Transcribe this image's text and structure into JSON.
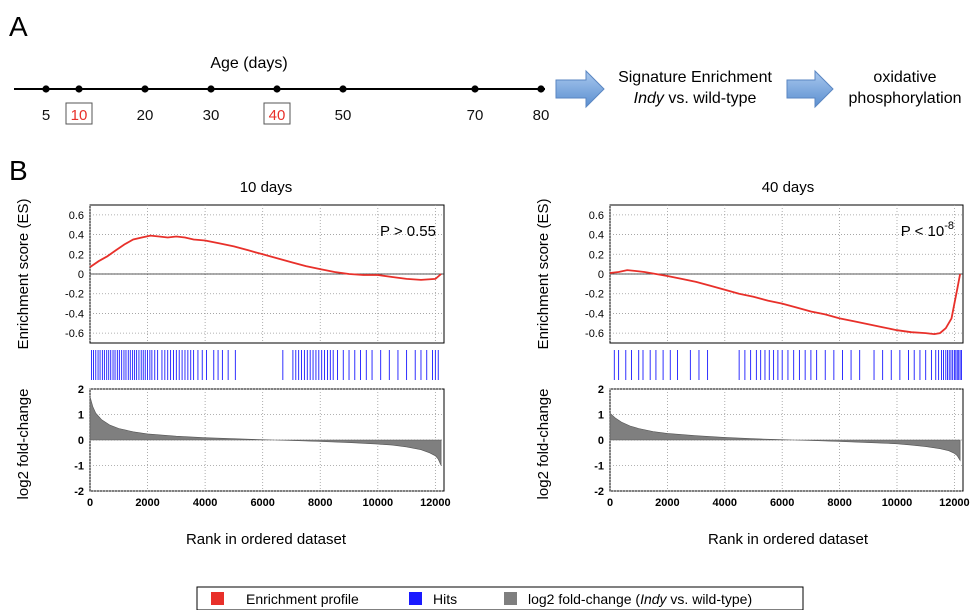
{
  "panel_a": {
    "label": "A",
    "title": "Age (days)",
    "ticks": [
      5,
      10,
      20,
      30,
      40,
      50,
      70,
      80
    ],
    "highlighted": [
      10,
      40
    ],
    "highlight_color": "#e8302a",
    "step1_line1": "Signature Enrichment",
    "step1_line2_italic": "Indy",
    "step1_line2_rest": " vs. wild-type",
    "step2_line1": "oxidative",
    "step2_line2": "phosphorylation",
    "arrow_color": "#7aa7dc"
  },
  "panel_b": {
    "label": "B",
    "xlabel": "Rank in ordered dataset",
    "es_ylabel": "Enrichment score (ES)",
    "fc_ylabel": "log2 fold-change"
  },
  "legend": {
    "enrichment_label": "Enrichment profile",
    "enrichment_color": "#e8302a",
    "hits_label": "Hits",
    "hits_color": "#1a1aff",
    "fc_label_pre": "log2 fold-change (",
    "fc_label_italic": "Indy",
    "fc_label_post": " vs. wild-type)",
    "fc_color": "#7f7f7f"
  },
  "chart_data": [
    {
      "type": "line",
      "title": "10 days",
      "p_value_text": "P > 0.55",
      "xlabel": "Rank in ordered dataset",
      "ylabel": "Enrichment score (ES)",
      "xlim": [
        0,
        12300
      ],
      "ylim": [
        -0.7,
        0.7
      ],
      "xticks": [
        0,
        2000,
        4000,
        6000,
        8000,
        10000,
        12000
      ],
      "yticks": [
        0.6,
        0.4,
        0.2,
        0,
        -0.2,
        -0.4,
        -0.6
      ],
      "series": [
        {
          "color": "#e8302a",
          "x": [
            0,
            300,
            600,
            900,
            1200,
            1500,
            1800,
            2100,
            2400,
            2700,
            3000,
            3300,
            3600,
            4000,
            4500,
            5000,
            5500,
            6000,
            6500,
            7000,
            7500,
            8000,
            8500,
            9000,
            9500,
            10000,
            10500,
            11000,
            11500,
            12000,
            12200
          ],
          "y": [
            0.07,
            0.13,
            0.18,
            0.24,
            0.3,
            0.35,
            0.37,
            0.39,
            0.38,
            0.37,
            0.38,
            0.37,
            0.35,
            0.34,
            0.31,
            0.28,
            0.24,
            0.2,
            0.16,
            0.12,
            0.08,
            0.05,
            0.02,
            0.0,
            -0.01,
            -0.01,
            -0.03,
            -0.05,
            -0.06,
            -0.05,
            0.0
          ]
        }
      ],
      "hits": [
        50,
        120,
        200,
        280,
        350,
        430,
        500,
        580,
        650,
        720,
        800,
        870,
        950,
        1020,
        1100,
        1180,
        1250,
        1330,
        1400,
        1480,
        1550,
        1620,
        1700,
        1780,
        1850,
        1920,
        2000,
        2080,
        2150,
        2250,
        2350,
        2500,
        2600,
        2700,
        2800,
        2900,
        3000,
        3100,
        3200,
        3300,
        3400,
        3500,
        3600,
        3750,
        3900,
        4050,
        4300,
        4450,
        4600,
        4800,
        5050,
        6700,
        7050,
        7150,
        7250,
        7350,
        7450,
        7550,
        7650,
        7750,
        7850,
        7950,
        8050,
        8150,
        8250,
        8350,
        8450,
        8600,
        8800,
        9000,
        9200,
        9400,
        9600,
        9800,
        10100,
        10400,
        10700,
        11000,
        11300,
        11500,
        11700,
        11900,
        12000,
        12100
      ]
    },
    {
      "type": "line",
      "title": "40 days",
      "p_value_base": "P < 10",
      "p_value_exp": "-8",
      "xlabel": "Rank in ordered dataset",
      "ylabel": "Enrichment score (ES)",
      "xlim": [
        0,
        12300
      ],
      "ylim": [
        -0.7,
        0.7
      ],
      "xticks": [
        0,
        2000,
        4000,
        6000,
        8000,
        10000,
        12000
      ],
      "yticks": [
        0.6,
        0.4,
        0.2,
        0,
        -0.2,
        -0.4,
        -0.6
      ],
      "series": [
        {
          "color": "#e8302a",
          "x": [
            0,
            300,
            600,
            900,
            1200,
            1600,
            2000,
            2500,
            3000,
            3500,
            4000,
            4500,
            5000,
            5500,
            6000,
            6500,
            7000,
            7500,
            8000,
            8500,
            9000,
            9500,
            10000,
            10500,
            11000,
            11300,
            11500,
            11700,
            11900,
            12000,
            12100,
            12200
          ],
          "y": [
            0.01,
            0.02,
            0.04,
            0.03,
            0.02,
            0.0,
            -0.02,
            -0.05,
            -0.08,
            -0.12,
            -0.16,
            -0.2,
            -0.23,
            -0.27,
            -0.3,
            -0.34,
            -0.38,
            -0.41,
            -0.45,
            -0.48,
            -0.51,
            -0.54,
            -0.57,
            -0.59,
            -0.6,
            -0.61,
            -0.6,
            -0.55,
            -0.45,
            -0.3,
            -0.15,
            0.0
          ]
        }
      ],
      "hits": [
        150,
        300,
        550,
        750,
        1000,
        1150,
        1400,
        1600,
        1850,
        2100,
        2350,
        2800,
        3100,
        3400,
        4500,
        4700,
        4900,
        5100,
        5250,
        5400,
        5550,
        5700,
        5850,
        6000,
        6200,
        6400,
        6600,
        6800,
        7000,
        7200,
        7500,
        7800,
        8100,
        8400,
        8700,
        9200,
        9500,
        9800,
        10100,
        10400,
        10600,
        10800,
        11000,
        11200,
        11350,
        11450,
        11550,
        11620,
        11700,
        11760,
        11820,
        11880,
        11940,
        12000,
        12050,
        12100,
        12150,
        12200,
        12250
      ]
    },
    {
      "type": "area",
      "panel": "10 days",
      "ylabel": "log2 fold-change",
      "xlim": [
        0,
        12300
      ],
      "ylim": [
        -2,
        2
      ],
      "yticks": [
        2,
        1,
        0,
        -1,
        -2
      ],
      "color": "#7f7f7f",
      "x": [
        0,
        100,
        200,
        400,
        700,
        1000,
        1500,
        2000,
        3000,
        4000,
        5000,
        6000,
        6400,
        7000,
        8000,
        9000,
        10000,
        10500,
        11000,
        11500,
        11800,
        12000,
        12100,
        12200
      ],
      "y": [
        1.7,
        1.3,
        1.05,
        0.8,
        0.58,
        0.45,
        0.32,
        0.24,
        0.15,
        0.09,
        0.05,
        0.01,
        0.0,
        -0.02,
        -0.06,
        -0.1,
        -0.16,
        -0.2,
        -0.27,
        -0.38,
        -0.5,
        -0.62,
        -0.75,
        -1.0
      ]
    },
    {
      "type": "area",
      "panel": "40 days",
      "ylabel": "log2 fold-change",
      "xlim": [
        0,
        12300
      ],
      "ylim": [
        -2,
        2
      ],
      "yticks": [
        2,
        1,
        0,
        -1,
        -2
      ],
      "color": "#7f7f7f",
      "x": [
        0,
        100,
        200,
        400,
        700,
        1000,
        1500,
        2000,
        3000,
        4000,
        5000,
        6000,
        6400,
        7000,
        8000,
        9000,
        10000,
        10500,
        11000,
        11500,
        11800,
        12000,
        12100,
        12200
      ],
      "y": [
        1.05,
        0.95,
        0.85,
        0.7,
        0.55,
        0.45,
        0.33,
        0.26,
        0.17,
        0.1,
        0.05,
        0.01,
        0.0,
        -0.02,
        -0.06,
        -0.1,
        -0.15,
        -0.2,
        -0.26,
        -0.34,
        -0.42,
        -0.52,
        -0.62,
        -0.8
      ]
    }
  ]
}
